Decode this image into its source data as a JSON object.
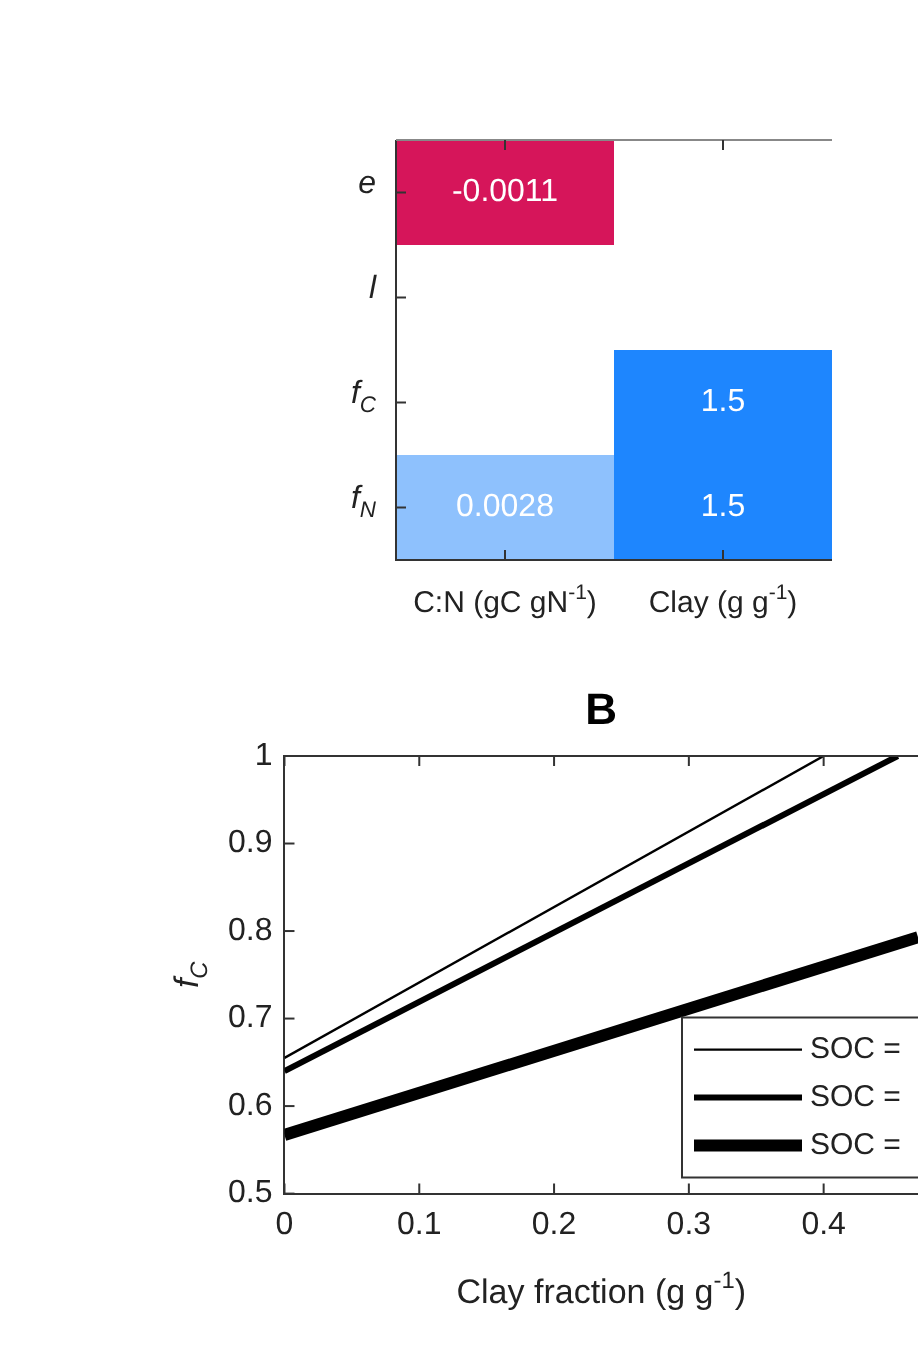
{
  "chart_data": [
    {
      "type": "heatmap",
      "categories": [
        "C:N (gC gN$^{-1}$)",
        "Clay (g g$^{-1}$)"
      ],
      "y_categories": [
        "e",
        "l",
        "f$_{C}$",
        "f$_{N}$"
      ],
      "cells": [
        [
          -0.0011,
          null
        ],
        [
          null,
          null
        ],
        [
          null,
          1.5
        ],
        [
          0.0028,
          1.5
        ]
      ],
      "colors": [
        [
          "#d6155a",
          null
        ],
        [
          null,
          null
        ],
        [
          null,
          "#1e86fe"
        ],
        [
          "#8ec1fd",
          "#1e86fe"
        ]
      ],
      "data_labels": true
    },
    {
      "type": "line",
      "title": "B",
      "xlabel": "Clay fraction (g g$^{-1}$)",
      "ylabel": "f$_{C}$",
      "xlim": [
        0,
        0.47
      ],
      "xticks": [
        0,
        0.1,
        0.2,
        0.3,
        0.4
      ],
      "ylim": [
        0.5,
        1
      ],
      "yticks": [
        0.5,
        0.6,
        0.7,
        0.8,
        0.9,
        1
      ],
      "legend": "bottom right",
      "grid": false,
      "series": [
        {
          "name": "SOC =",
          "color": "#000000",
          "x": [
            0,
            0.4
          ],
          "values": [
            0.655,
            1.0
          ]
        },
        {
          "name": "SOC =",
          "color": "#000000",
          "x": [
            0,
            0.455
          ],
          "values": [
            0.64,
            1.0
          ]
        },
        {
          "name": "SOC =",
          "color": "#000000",
          "x": [
            0,
            0.47
          ],
          "values": [
            0.567,
            0.793
          ]
        }
      ]
    }
  ]
}
